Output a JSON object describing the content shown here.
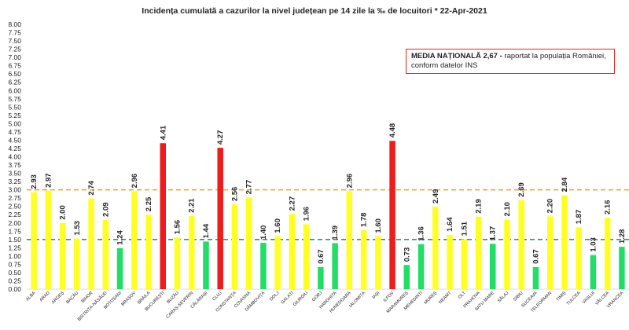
{
  "chart_data": {
    "type": "bar",
    "title": "Incidența cumulată a cazurilor la nivel județean pe 14 zile   la ‰ de locuitori  *   22-Apr-2021",
    "xlabel": "",
    "ylabel": "",
    "ylim": [
      0,
      8
    ],
    "y_ticks": [
      "0.00",
      "0.25",
      "0.50",
      "0.75",
      "1.00",
      "1.25",
      "1.50",
      "1.75",
      "2.00",
      "2.25",
      "2.50",
      "2.75",
      "3.00",
      "3.25",
      "3.50",
      "3.75",
      "4.00",
      "4.25",
      "4.50",
      "4.75",
      "5.00",
      "5.25",
      "5.50",
      "5.75",
      "6.00",
      "6.25",
      "6.50",
      "6.75",
      "7.00",
      "7.25",
      "7.50",
      "7.75",
      "8.00"
    ],
    "categories": [
      "ALBA",
      "ARAD",
      "ARGEȘ",
      "BACĂU",
      "BIHOR",
      "BISTRIȚA-NĂSĂUD",
      "BOTOȘANI",
      "BRAȘOV",
      "BRĂILA",
      "BUCUREȘTI",
      "BUZĂU",
      "CARAȘ-SEVERIN",
      "CĂLĂRAȘI",
      "CLUJ",
      "CONSTANȚA",
      "COVASNA",
      "DÂMBOVIȚA",
      "DOLJ",
      "GALAȚI",
      "GIURGIU",
      "GORJ",
      "HARGHITA",
      "HUNEDOARA",
      "IALOMIȚA",
      "IAȘI",
      "ILFOV",
      "MARAMUREȘ",
      "MEHEDINȚI",
      "MUREȘ",
      "NEAMȚ",
      "OLT",
      "PRAHOVA",
      "SATU MARE",
      "SĂLAJ",
      "SIBIU",
      "SUCEAVA",
      "TELEORMAN",
      "TIMIȘ",
      "TULCEA",
      "VASLUI",
      "VÂLCEA",
      "VRANCEA"
    ],
    "values": [
      2.93,
      2.97,
      2.0,
      1.53,
      2.74,
      2.09,
      1.24,
      2.96,
      2.25,
      4.41,
      1.56,
      2.21,
      1.44,
      4.27,
      2.56,
      2.77,
      1.4,
      1.6,
      2.27,
      1.96,
      0.67,
      1.39,
      2.96,
      1.78,
      1.6,
      4.48,
      0.73,
      1.36,
      2.49,
      1.64,
      1.51,
      2.19,
      1.37,
      2.1,
      2.69,
      0.67,
      2.2,
      2.84,
      1.87,
      1.03,
      2.16,
      1.28
    ],
    "value_labels": [
      "2.93",
      "2.97",
      "2.00",
      "1.53",
      "2.74",
      "2.09",
      "1.24",
      "2.96",
      "2.25",
      "4.41",
      "1.56",
      "2.21",
      "1.44",
      "4.27",
      "2.56",
      "2.77",
      "1.40",
      "1.60",
      "2.27",
      "1.96",
      "0.67",
      "1.39",
      "2.96",
      "1.78",
      "1.60",
      "4.48",
      "0.73",
      "1.36",
      "2.49",
      "1.64",
      "1.51",
      "2.19",
      "1.37",
      "2.10",
      "2.69",
      "0.67",
      "2.20",
      "2.84",
      "1.87",
      "1.03",
      "2.16",
      "1.28"
    ],
    "reference_lines": [
      {
        "value": 3.0,
        "color": "#f0a020",
        "style": "dashed"
      },
      {
        "value": 1.5,
        "color": "#2a9a6a",
        "style": "dashed"
      }
    ],
    "colors": {
      "low": "#22dd66",
      "mid": "#ffff22",
      "high": "#ee1c1c",
      "threshold_low": 1.5,
      "threshold_high": 4.0
    },
    "grid": false,
    "legend": "none",
    "annotation": {
      "bold": "MEDIA NAȚIONALĂ 2,67 -",
      "text": " raportat la populația României, conform datelor INS"
    }
  }
}
